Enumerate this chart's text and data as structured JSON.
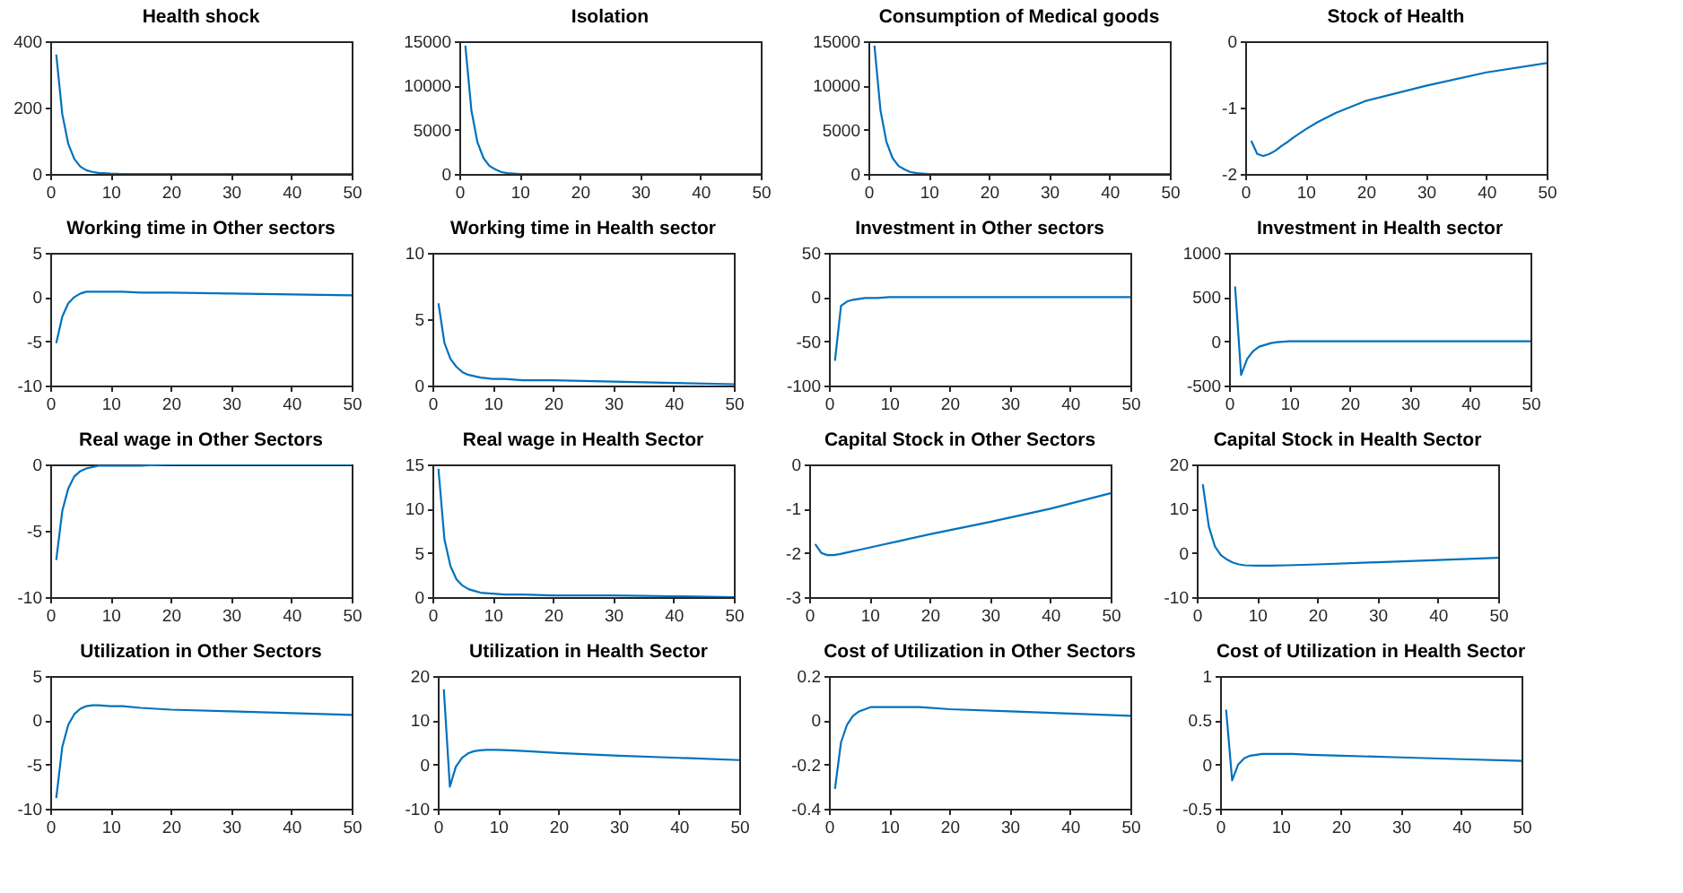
{
  "chart_data": [
    {
      "type": "line",
      "title": "Health shock",
      "x": [
        1,
        2,
        3,
        4,
        5,
        6,
        7,
        8,
        10,
        12,
        15,
        20,
        30,
        40,
        50
      ],
      "xlim": [
        0,
        50
      ],
      "xticks": [
        0,
        10,
        20,
        30,
        40,
        50
      ],
      "ylim": [
        0,
        400
      ],
      "yticks": [
        0,
        200,
        400
      ],
      "series": [
        {
          "color": "#0072bd",
          "values": [
            360,
            180,
            90,
            45,
            22,
            11,
            6,
            3,
            1,
            0,
            0,
            0,
            0,
            0,
            0
          ]
        }
      ]
    },
    {
      "type": "line",
      "title": "Isolation",
      "x": [
        1,
        2,
        3,
        4,
        5,
        6,
        7,
        8,
        10,
        12,
        15,
        20,
        30,
        40,
        50
      ],
      "xlim": [
        0,
        50
      ],
      "xticks": [
        0,
        10,
        20,
        30,
        40,
        50
      ],
      "ylim": [
        0,
        15000
      ],
      "yticks": [
        0,
        5000,
        10000,
        15000
      ],
      "series": [
        {
          "color": "#0072bd",
          "values": [
            14500,
            7200,
            3600,
            1800,
            900,
            500,
            200,
            100,
            0,
            0,
            0,
            0,
            0,
            0,
            0
          ]
        }
      ]
    },
    {
      "type": "line",
      "title": "Consumption of Medical goods",
      "x": [
        1,
        2,
        3,
        4,
        5,
        6,
        7,
        8,
        10,
        12,
        15,
        20,
        30,
        40,
        50
      ],
      "xlim": [
        0,
        50
      ],
      "xticks": [
        0,
        10,
        20,
        30,
        40,
        50
      ],
      "ylim": [
        0,
        15000
      ],
      "yticks": [
        0,
        5000,
        10000,
        15000
      ],
      "series": [
        {
          "color": "#0072bd",
          "values": [
            14500,
            7200,
            3600,
            1800,
            900,
            500,
            200,
            100,
            0,
            0,
            0,
            0,
            0,
            0,
            0
          ]
        }
      ]
    },
    {
      "type": "line",
      "title": "Stock of Health",
      "x": [
        1,
        2,
        3,
        4,
        5,
        6,
        7,
        8,
        10,
        12,
        15,
        20,
        30,
        40,
        50
      ],
      "xlim": [
        0,
        50
      ],
      "xticks": [
        0,
        10,
        20,
        30,
        40,
        50
      ],
      "ylim": [
        -2,
        0
      ],
      "yticks": [
        -2,
        -1,
        0
      ],
      "series": [
        {
          "color": "#0072bd",
          "values": [
            -1.5,
            -1.7,
            -1.73,
            -1.7,
            -1.65,
            -1.58,
            -1.52,
            -1.45,
            -1.33,
            -1.22,
            -1.08,
            -0.9,
            -0.67,
            -0.47,
            -0.33
          ]
        }
      ]
    },
    {
      "type": "line",
      "title": "Working time in Other sectors",
      "x": [
        1,
        2,
        3,
        4,
        5,
        6,
        7,
        8,
        10,
        12,
        15,
        20,
        30,
        40,
        50
      ],
      "xlim": [
        0,
        50
      ],
      "xticks": [
        0,
        10,
        20,
        30,
        40,
        50
      ],
      "ylim": [
        -10,
        5
      ],
      "yticks": [
        -10,
        -5,
        0,
        5
      ],
      "series": [
        {
          "color": "#0072bd",
          "values": [
            -5.2,
            -2.2,
            -0.7,
            0,
            0.4,
            0.6,
            0.6,
            0.6,
            0.6,
            0.6,
            0.5,
            0.5,
            0.4,
            0.3,
            0.2
          ]
        }
      ]
    },
    {
      "type": "line",
      "title": "Working time in Health sector",
      "x": [
        1,
        2,
        3,
        4,
        5,
        6,
        7,
        8,
        10,
        12,
        15,
        20,
        30,
        40,
        50
      ],
      "xlim": [
        0,
        50
      ],
      "xticks": [
        0,
        10,
        20,
        30,
        40,
        50
      ],
      "ylim": [
        0,
        10
      ],
      "yticks": [
        0,
        5,
        10
      ],
      "series": [
        {
          "color": "#0072bd",
          "values": [
            6.2,
            3.2,
            2,
            1.4,
            1,
            0.8,
            0.7,
            0.6,
            0.5,
            0.5,
            0.4,
            0.4,
            0.3,
            0.2,
            0.1
          ]
        }
      ]
    },
    {
      "type": "line",
      "title": "Investment in Other sectors",
      "x": [
        1,
        2,
        3,
        4,
        5,
        6,
        7,
        8,
        10,
        12,
        15,
        20,
        30,
        40,
        50
      ],
      "xlim": [
        0,
        50
      ],
      "xticks": [
        0,
        10,
        20,
        30,
        40,
        50
      ],
      "ylim": [
        -100,
        50
      ],
      "yticks": [
        -100,
        -50,
        0,
        50
      ],
      "series": [
        {
          "color": "#0072bd",
          "values": [
            -72,
            -10,
            -5,
            -3,
            -2,
            -1,
            -1,
            -1,
            0,
            0,
            0,
            0,
            0,
            0,
            0
          ]
        }
      ]
    },
    {
      "type": "line",
      "title": "Investment in Health sector",
      "x": [
        1,
        2,
        3,
        4,
        5,
        6,
        7,
        8,
        10,
        12,
        15,
        20,
        30,
        40,
        50
      ],
      "xlim": [
        0,
        50
      ],
      "xticks": [
        0,
        10,
        20,
        30,
        40,
        50
      ],
      "ylim": [
        -500,
        1000
      ],
      "yticks": [
        -500,
        0,
        500,
        1000
      ],
      "series": [
        {
          "color": "#0072bd",
          "values": [
            620,
            -380,
            -200,
            -110,
            -60,
            -40,
            -20,
            -10,
            0,
            0,
            0,
            0,
            0,
            0,
            0
          ]
        }
      ]
    },
    {
      "type": "line",
      "title": "Real wage in Other Sectors",
      "x": [
        1,
        2,
        3,
        4,
        5,
        6,
        7,
        8,
        10,
        12,
        15,
        20,
        30,
        40,
        50
      ],
      "xlim": [
        0,
        50
      ],
      "xticks": [
        0,
        10,
        20,
        30,
        40,
        50
      ],
      "ylim": [
        -10,
        0
      ],
      "yticks": [
        -10,
        -5,
        0
      ],
      "series": [
        {
          "color": "#0072bd",
          "values": [
            -7.2,
            -3.5,
            -1.8,
            -0.9,
            -0.5,
            -0.3,
            -0.2,
            -0.1,
            -0.1,
            -0.1,
            -0.1,
            0,
            0,
            0,
            0
          ]
        }
      ]
    },
    {
      "type": "line",
      "title": "Real wage in Health Sector",
      "x": [
        1,
        2,
        3,
        4,
        5,
        6,
        7,
        8,
        10,
        12,
        15,
        20,
        30,
        40,
        50
      ],
      "xlim": [
        0,
        50
      ],
      "xticks": [
        0,
        10,
        20,
        30,
        40,
        50
      ],
      "ylim": [
        0,
        15
      ],
      "yticks": [
        0,
        5,
        10,
        15
      ],
      "series": [
        {
          "color": "#0072bd",
          "values": [
            14.5,
            6.5,
            3.5,
            2,
            1.3,
            0.9,
            0.7,
            0.5,
            0.4,
            0.3,
            0.3,
            0.2,
            0.2,
            0.1,
            0
          ]
        }
      ]
    },
    {
      "type": "line",
      "title": "Capital Stock in Other Sectors",
      "x": [
        1,
        2,
        3,
        4,
        5,
        6,
        7,
        8,
        10,
        12,
        15,
        20,
        30,
        40,
        50
      ],
      "xlim": [
        0,
        50
      ],
      "xticks": [
        0,
        10,
        20,
        30,
        40,
        50
      ],
      "ylim": [
        -3,
        0
      ],
      "yticks": [
        -3,
        -2,
        -1,
        0
      ],
      "series": [
        {
          "color": "#0072bd",
          "values": [
            -1.8,
            -2,
            -2.05,
            -2.05,
            -2.03,
            -2,
            -1.97,
            -1.94,
            -1.88,
            -1.82,
            -1.73,
            -1.58,
            -1.3,
            -1,
            -0.65
          ]
        }
      ]
    },
    {
      "type": "line",
      "title": "Capital Stock in Health Sector",
      "x": [
        1,
        2,
        3,
        4,
        5,
        6,
        7,
        8,
        10,
        12,
        15,
        20,
        30,
        40,
        50
      ],
      "xlim": [
        0,
        50
      ],
      "xticks": [
        0,
        10,
        20,
        30,
        40,
        50
      ],
      "ylim": [
        -10,
        20
      ],
      "yticks": [
        -10,
        0,
        10,
        20
      ],
      "series": [
        {
          "color": "#0072bd",
          "values": [
            15.5,
            6,
            1.5,
            -0.5,
            -1.5,
            -2.2,
            -2.6,
            -2.8,
            -2.9,
            -2.9,
            -2.8,
            -2.6,
            -2.1,
            -1.6,
            -1.1
          ]
        }
      ]
    },
    {
      "type": "line",
      "title": "Utilization in Other Sectors",
      "x": [
        1,
        2,
        3,
        4,
        5,
        6,
        7,
        8,
        10,
        12,
        15,
        20,
        30,
        40,
        50
      ],
      "xlim": [
        0,
        50
      ],
      "xticks": [
        0,
        10,
        20,
        30,
        40,
        50
      ],
      "ylim": [
        -10,
        5
      ],
      "yticks": [
        -10,
        -5,
        0,
        5
      ],
      "series": [
        {
          "color": "#0072bd",
          "values": [
            -8.8,
            -3,
            -0.5,
            0.7,
            1.3,
            1.6,
            1.7,
            1.7,
            1.6,
            1.6,
            1.4,
            1.2,
            1,
            0.8,
            0.6
          ]
        }
      ]
    },
    {
      "type": "line",
      "title": "Utilization in Health Sector",
      "x": [
        1,
        2,
        3,
        4,
        5,
        6,
        7,
        8,
        10,
        12,
        15,
        20,
        30,
        40,
        50
      ],
      "xlim": [
        0,
        50
      ],
      "xticks": [
        0,
        10,
        20,
        30,
        40,
        50
      ],
      "ylim": [
        -10,
        20
      ],
      "yticks": [
        -10,
        0,
        10,
        20
      ],
      "series": [
        {
          "color": "#0072bd",
          "values": [
            17,
            -5,
            -0.5,
            1.5,
            2.5,
            3,
            3.2,
            3.3,
            3.3,
            3.2,
            3,
            2.6,
            2,
            1.5,
            1
          ]
        }
      ]
    },
    {
      "type": "line",
      "title": "Cost of Utilization in Other Sectors",
      "x": [
        1,
        2,
        3,
        4,
        5,
        6,
        7,
        8,
        10,
        12,
        15,
        20,
        30,
        40,
        50
      ],
      "xlim": [
        0,
        50
      ],
      "xticks": [
        0,
        10,
        20,
        30,
        40,
        50
      ],
      "ylim": [
        -0.4,
        0.2
      ],
      "yticks": [
        -0.4,
        -0.2,
        0,
        0.2
      ],
      "series": [
        {
          "color": "#0072bd",
          "values": [
            -0.31,
            -0.1,
            -0.02,
            0.02,
            0.04,
            0.05,
            0.06,
            0.06,
            0.06,
            0.06,
            0.06,
            0.05,
            0.04,
            0.03,
            0.02
          ]
        }
      ]
    },
    {
      "type": "line",
      "title": "Cost of Utilization in Health Sector",
      "x": [
        1,
        2,
        3,
        4,
        5,
        6,
        7,
        8,
        10,
        12,
        15,
        20,
        30,
        40,
        50
      ],
      "xlim": [
        0,
        50
      ],
      "xticks": [
        0,
        10,
        20,
        30,
        40,
        50
      ],
      "ylim": [
        -0.5,
        1
      ],
      "yticks": [
        -0.5,
        0,
        0.5,
        1
      ],
      "series": [
        {
          "color": "#0072bd",
          "values": [
            0.62,
            -0.18,
            0,
            0.07,
            0.1,
            0.11,
            0.12,
            0.12,
            0.12,
            0.12,
            0.11,
            0.1,
            0.08,
            0.06,
            0.04
          ]
        }
      ]
    }
  ]
}
